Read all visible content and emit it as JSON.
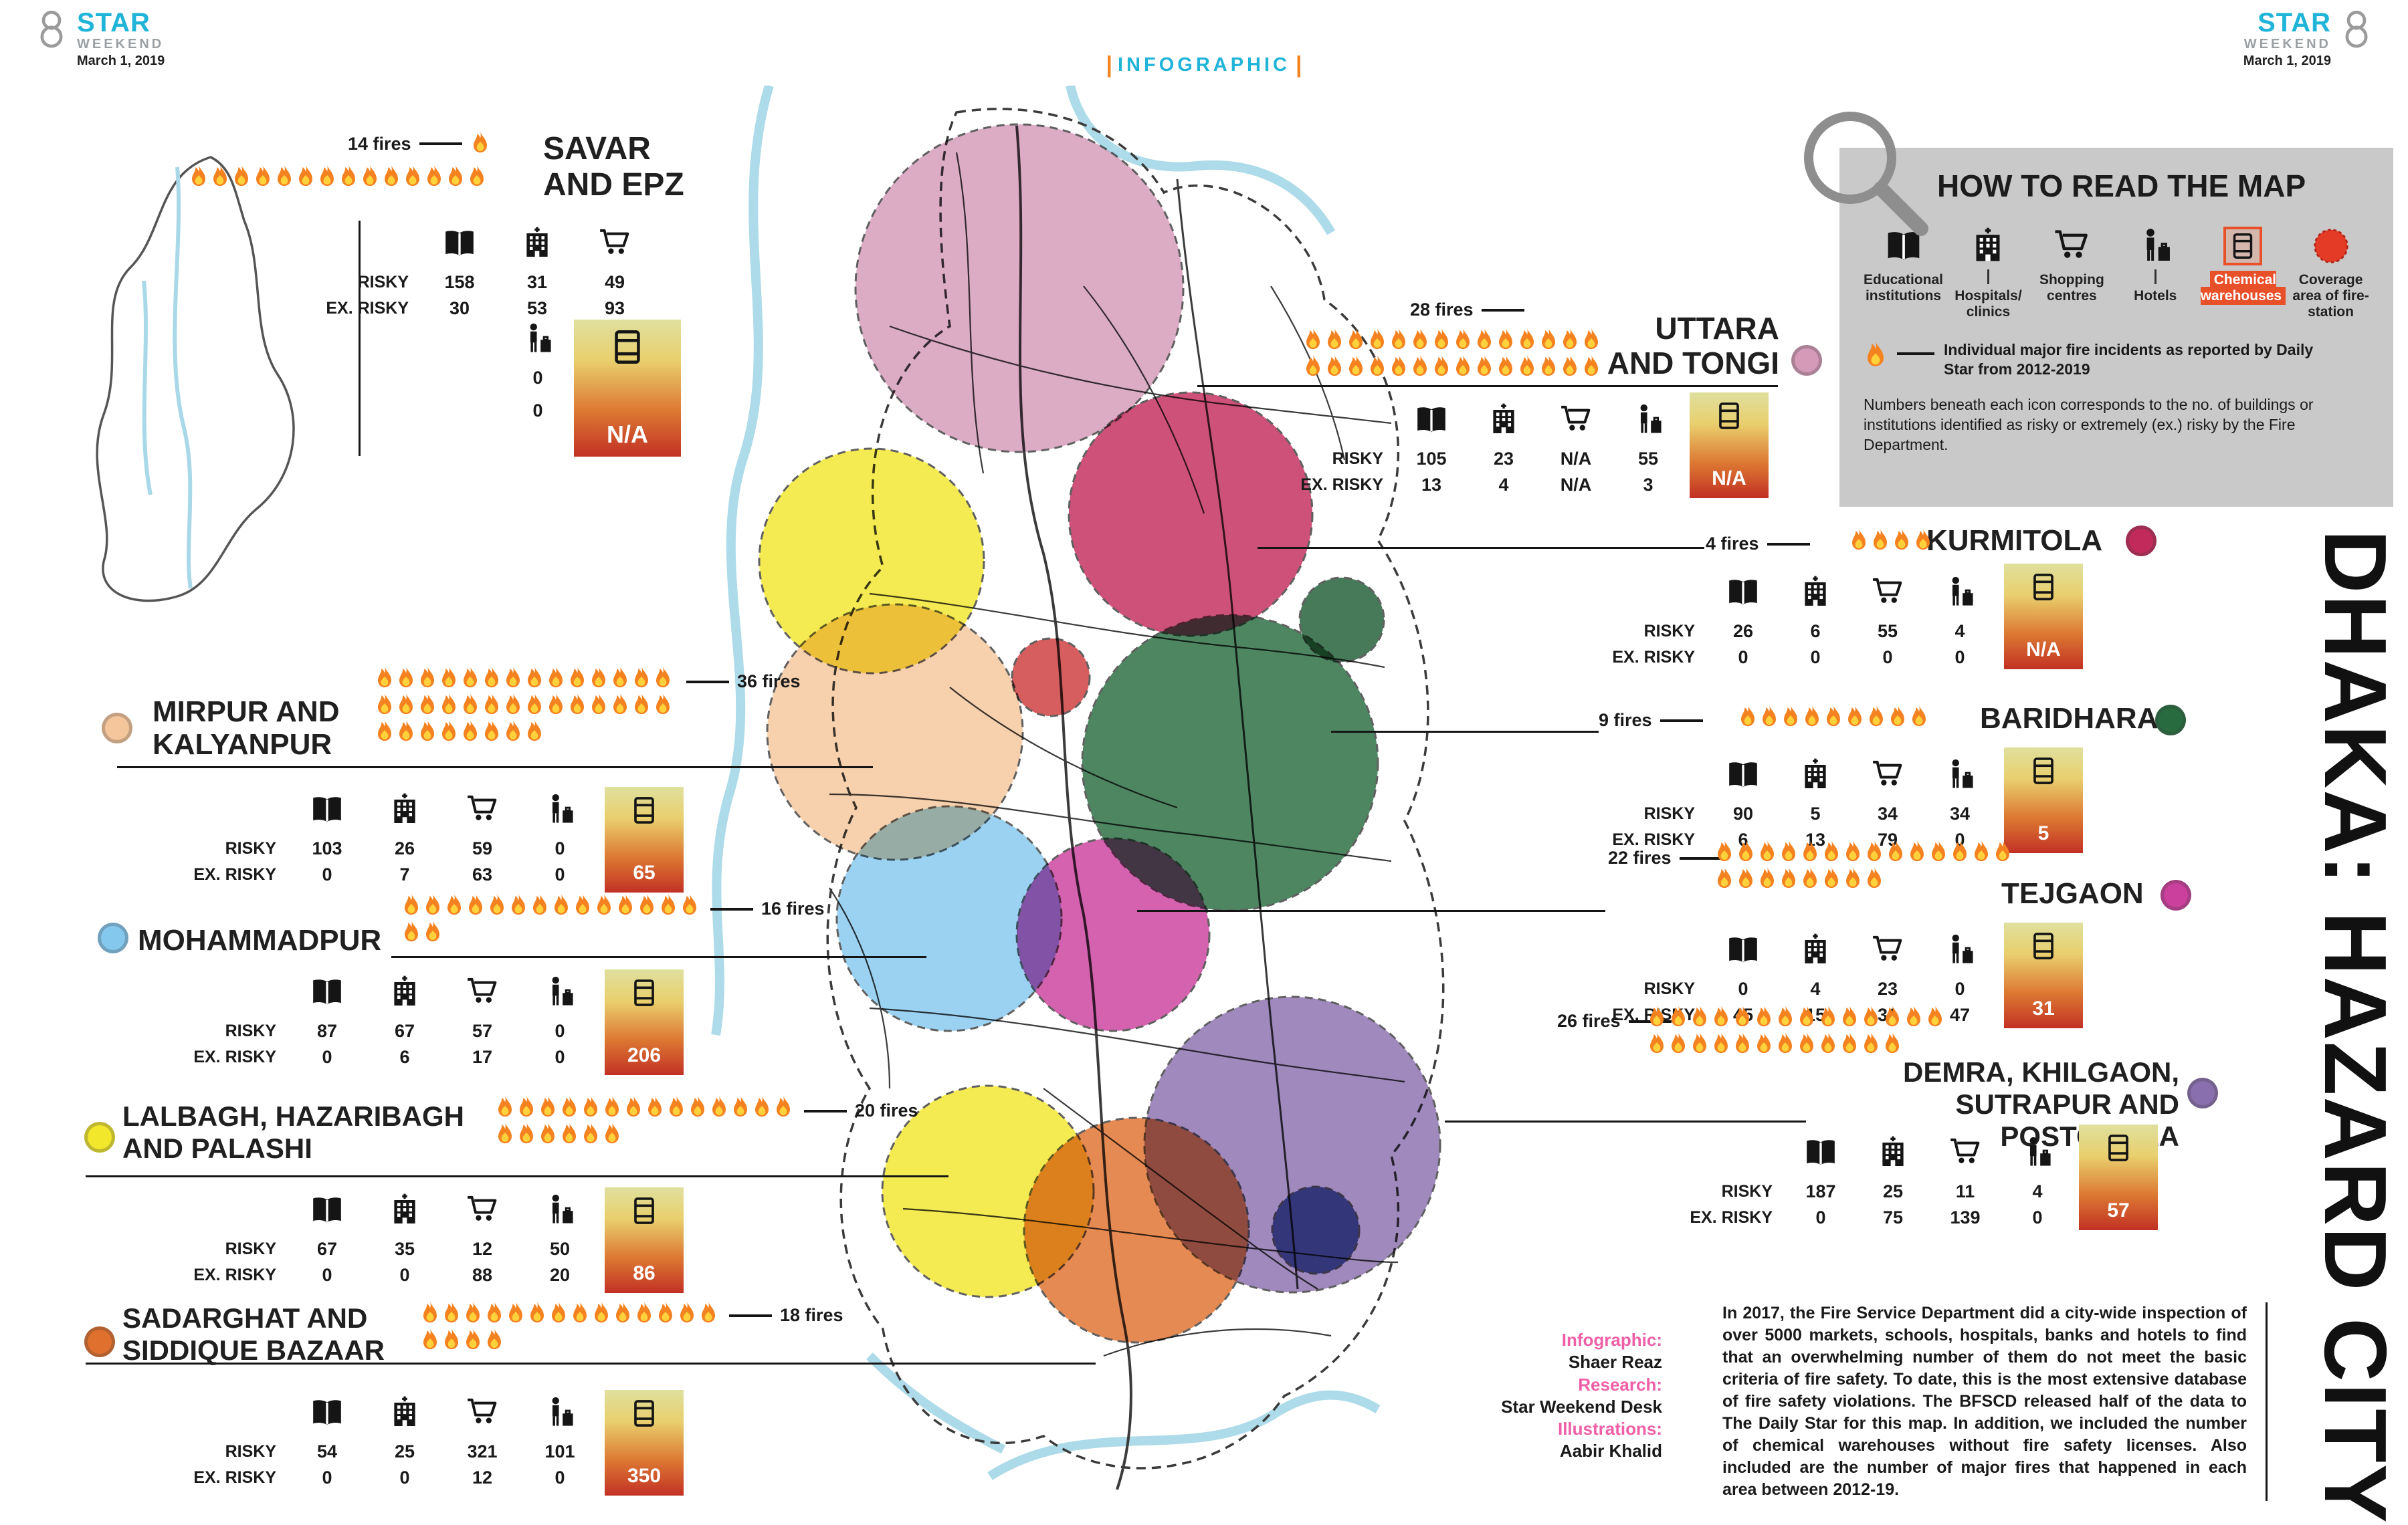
{
  "meta": {
    "brand_top": "STAR",
    "brand_sub": "WEEKEND",
    "date": "March 1, 2019",
    "tag": "INFOGRAPHIC",
    "vertical_title": "DHAKA: HAZARD CITY"
  },
  "colors": {
    "brand_cyan": "#1fb4d8",
    "accent_orange": "#f5821f",
    "credit_pink": "#ef5fa7",
    "legend_bg": "#c9c9c9",
    "coverage_red": "#e33b25",
    "chem_highlight": "#e8502a"
  },
  "labels": {
    "risky": "RISKY",
    "ex_risky": "EX. RISKY"
  },
  "legend": {
    "title": "HOW TO READ THE MAP",
    "items": [
      {
        "label": "Educational institutions"
      },
      {
        "label": "Hospitals/ clinics"
      },
      {
        "label": "Shopping centres"
      },
      {
        "label": "Hotels"
      },
      {
        "label": "Chemical warehouses"
      },
      {
        "label": "Coverage area of fire-station"
      }
    ],
    "fire_note": "Individual major fire incidents as reported by Daily Star from 2012-2019",
    "note": "Numbers beneath each icon corresponds to the no. of buildings or institutions identified as risky or extremely (ex.) risky by the Fire Department."
  },
  "areas": [
    {
      "name": "SAVAR",
      "name2": "AND EPZ",
      "fires": 14,
      "fires_label": "14 fires",
      "risky": [
        "158",
        "31",
        "49"
      ],
      "ex_risky": [
        "30",
        "53",
        "93"
      ],
      "hotel_risky": "0",
      "hotel_ex": "0",
      "chem": "N/A"
    },
    {
      "name": "UTTARA",
      "name2": "AND TONGI",
      "fires": 28,
      "fires_label": "28 fires",
      "risky": [
        "105",
        "23",
        "N/A",
        "55"
      ],
      "ex_risky": [
        "13",
        "4",
        "N/A",
        "3"
      ],
      "chem": "N/A",
      "color": "#d49ab8"
    },
    {
      "name": "KURMITOLA",
      "name2": "",
      "fires": 4,
      "fires_label": "4 fires",
      "risky": [
        "26",
        "6",
        "55",
        "4"
      ],
      "ex_risky": [
        "0",
        "0",
        "0",
        "0"
      ],
      "chem": "N/A",
      "color": "#c22a5b"
    },
    {
      "name": "BARIDHARA",
      "name2": "",
      "fires": 9,
      "fires_label": "9 fires",
      "risky": [
        "90",
        "5",
        "34",
        "34"
      ],
      "ex_risky": [
        "6",
        "13",
        "79",
        "0"
      ],
      "chem": "5",
      "color": "#276b3f"
    },
    {
      "name": "TEJGAON",
      "name2": "",
      "fires": 22,
      "fires_label": "22 fires",
      "risky": [
        "0",
        "4",
        "23",
        "0"
      ],
      "ex_risky": [
        "45",
        "15",
        "31",
        "47"
      ],
      "chem": "31",
      "color": "#cb3f9d"
    },
    {
      "name": "DEMRA, KHILGAON,",
      "name2": "SUTRAPUR AND POSTOGOLA",
      "fires": 26,
      "fires_label": "26 fires",
      "risky": [
        "187",
        "25",
        "11",
        "4"
      ],
      "ex_risky": [
        "0",
        "75",
        "139",
        "0"
      ],
      "chem": "57",
      "color": "#8a6fae"
    },
    {
      "name": "MIRPUR AND",
      "name2": "KALYANPUR",
      "fires": 36,
      "fires_label": "36 fires",
      "risky": [
        "103",
        "26",
        "59",
        "0"
      ],
      "ex_risky": [
        "0",
        "7",
        "63",
        "0"
      ],
      "chem": "65",
      "color": "#f5c69b"
    },
    {
      "name": "MOHAMMADPUR",
      "name2": "",
      "fires": 16,
      "fires_label": "16 fires",
      "risky": [
        "87",
        "67",
        "57",
        "0"
      ],
      "ex_risky": [
        "0",
        "6",
        "17",
        "0"
      ],
      "chem": "206",
      "color": "#85c8ee"
    },
    {
      "name": "LALBAGH, HAZARIBAGH",
      "name2": "AND PALASHI",
      "fires": 20,
      "fires_label": "20 fires",
      "risky": [
        "67",
        "35",
        "12",
        "50"
      ],
      "ex_risky": [
        "0",
        "0",
        "88",
        "20"
      ],
      "chem": "86",
      "color": "#f2e72b"
    },
    {
      "name": "SADARGHAT AND",
      "name2": "SIDDIQUE BAZAAR",
      "fires": 18,
      "fires_label": "18 fires",
      "risky": [
        "54",
        "25",
        "321",
        "101"
      ],
      "ex_risky": [
        "0",
        "0",
        "12",
        "0"
      ],
      "chem": "350",
      "color": "#e0702d"
    }
  ],
  "map": {
    "road_color": "#3b3b3b",
    "river_color": "#a9d9e8",
    "extra_regions": {
      "pallabi_yellow": "#f2e72b",
      "small_green": "#1d5c33",
      "navy": "#2c3f90",
      "small_red": "#cf3a3a"
    }
  },
  "credits": {
    "infographic_label": "Infographic:",
    "infographic": "Shaer Reaz",
    "research_label": "Research:",
    "research": "Star Weekend Desk",
    "illustrations_label": "Illustrations:",
    "illustrations": "Aabir Khalid"
  },
  "body_text": "In 2017, the Fire Service Department did a city-wide inspection of over 5000 markets, schools, hospitals, banks and hotels to find that an overwhelming number of them do not meet the basic criteria of fire safety. To date, this is the most extensive database of fire safety violations. The BFSCD released half of the data to The Daily Star for this map. In addition, we included the number of chemical warehouses without fire safety licenses. Also included are the number of major fires that happened in each area between 2012-19."
}
